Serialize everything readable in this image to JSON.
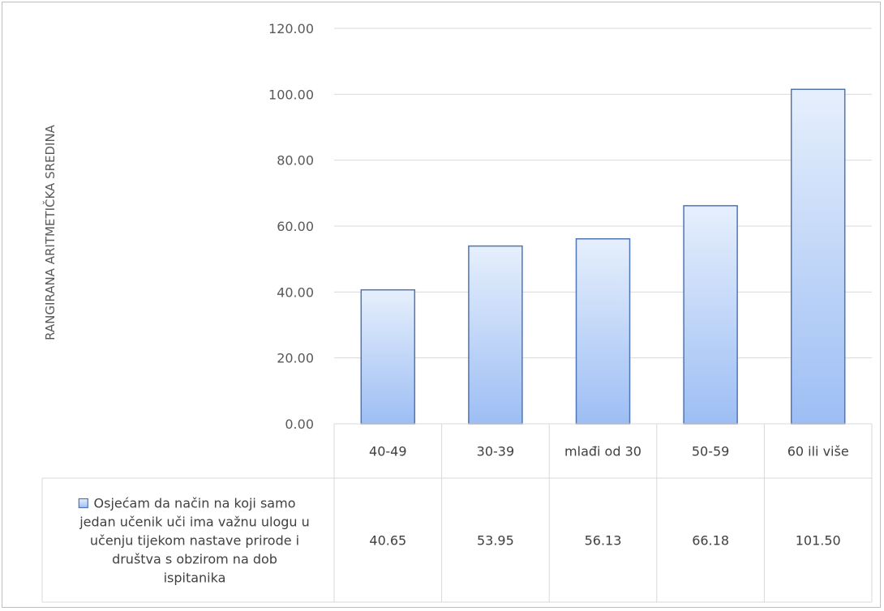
{
  "chart_data": {
    "type": "bar",
    "title": "",
    "xlabel": "",
    "ylabel": "RANGIRANA ARITMETIČKA SREDINA",
    "ylim": [
      0,
      120
    ],
    "yticks": [
      "0.00",
      "20.00",
      "40.00",
      "60.00",
      "80.00",
      "100.00",
      "120.00"
    ],
    "grid": true,
    "categories": [
      "40-49",
      "30-39",
      "mlađi od 30",
      "50-59",
      "60 ili više"
    ],
    "series": [
      {
        "name": "Osjećam da način na koji samo jedan učenik uči ima važnu ulogu u učenju tijekom nastave prirode i društva s obzirom na dob ispitanika",
        "values": [
          40.65,
          53.95,
          56.13,
          66.18,
          101.5
        ],
        "value_labels": [
          "40.65",
          "53.95",
          "56.13",
          "66.18",
          "101.50"
        ]
      }
    ],
    "legend": "data-table-bottom",
    "colors": {
      "bar_top": "#e6effc",
      "bar_bottom": "#9dbef4",
      "bar_border": "#4f75b4",
      "grid": "#d9d9d9"
    }
  }
}
